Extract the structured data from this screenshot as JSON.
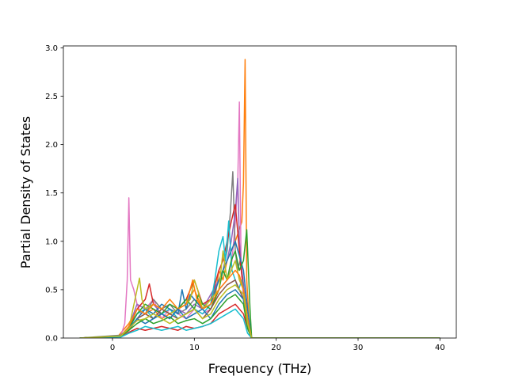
{
  "chart_data": {
    "type": "line",
    "title": "",
    "xlabel": "Frequency (THz)",
    "ylabel": "Partial Density of States",
    "xlim": [
      -6,
      42
    ],
    "ylim": [
      0.0,
      3.02
    ],
    "xticks": [
      0,
      10,
      20,
      30,
      40
    ],
    "xtick_labels": [
      "0",
      "10",
      "20",
      "30",
      "40"
    ],
    "yticks": [
      0.0,
      0.5,
      1.0,
      1.5,
      2.0,
      2.5,
      3.0
    ],
    "ytick_labels": [
      "0.0",
      "0.5",
      "1.0",
      "1.5",
      "2.0",
      "2.5",
      "3.0"
    ],
    "grid": false,
    "legend": "none",
    "x_range_of_data": [
      -4,
      40
    ],
    "series_colors": [
      "#1f77b4",
      "#ff7f0e",
      "#2ca02c",
      "#d62728",
      "#9467bd",
      "#8c564b",
      "#e377c2",
      "#7f7f7f",
      "#bcbd22",
      "#17becf"
    ],
    "series": [
      {
        "color": "#ff7f0e",
        "x": [
          -4,
          0.5,
          1,
          2,
          3,
          4,
          5,
          6,
          7,
          8,
          9,
          10,
          11,
          12,
          12.5,
          13,
          13.5,
          14,
          14.5,
          15,
          15.4,
          15.8,
          16.0,
          16.2,
          16.4,
          16.6,
          16.8,
          17,
          40
        ],
        "y": [
          0,
          0,
          0.05,
          0.15,
          0.3,
          0.25,
          0.3,
          0.2,
          0.25,
          0.3,
          0.35,
          0.5,
          0.3,
          0.35,
          0.4,
          0.7,
          0.6,
          0.8,
          0.9,
          1.0,
          1.1,
          1.2,
          1.6,
          2.88,
          0.6,
          0.3,
          0.05,
          0,
          0
        ]
      },
      {
        "color": "#e377c2",
        "x": [
          -4,
          1,
          1.5,
          1.8,
          2.0,
          2.2,
          2.6,
          3,
          3.5,
          4,
          5,
          6,
          7,
          8,
          9,
          10,
          11,
          12,
          13,
          14,
          14.6,
          15.0,
          15.3,
          15.5,
          15.7,
          16.0,
          16.5,
          17,
          40
        ],
        "y": [
          0,
          0.02,
          0.15,
          0.6,
          1.45,
          0.6,
          0.5,
          0.35,
          0.25,
          0.3,
          0.4,
          0.2,
          0.3,
          0.25,
          0.2,
          0.3,
          0.25,
          0.3,
          0.5,
          0.6,
          0.8,
          1.2,
          1.6,
          2.44,
          0.8,
          0.4,
          0.1,
          0,
          0
        ]
      },
      {
        "color": "#7f7f7f",
        "x": [
          -4,
          1,
          2,
          3,
          4,
          5,
          6,
          7,
          8,
          9,
          10,
          11,
          12,
          12.5,
          13,
          13.5,
          14,
          14.4,
          14.7,
          15.0,
          15.3,
          15.6,
          16.0,
          16.5,
          17,
          40
        ],
        "y": [
          0,
          0.03,
          0.1,
          0.3,
          0.25,
          0.4,
          0.3,
          0.35,
          0.25,
          0.3,
          0.4,
          0.3,
          0.4,
          0.5,
          0.6,
          0.7,
          0.9,
          1.3,
          1.72,
          0.9,
          0.7,
          0.8,
          0.5,
          0.2,
          0,
          0
        ]
      },
      {
        "color": "#9467bd",
        "x": [
          -4,
          1,
          2,
          3,
          4,
          5,
          6,
          7,
          8,
          9,
          10,
          11,
          12,
          13,
          13.5,
          14,
          14.5,
          15.0,
          15.3,
          15.5,
          15.8,
          16.1,
          16.5,
          17,
          40
        ],
        "y": [
          0,
          0.02,
          0.12,
          0.35,
          0.3,
          0.35,
          0.25,
          0.2,
          0.3,
          0.25,
          0.35,
          0.3,
          0.45,
          0.6,
          0.7,
          0.8,
          1.0,
          1.3,
          1.65,
          1.0,
          0.7,
          0.5,
          0.2,
          0,
          0
        ]
      },
      {
        "color": "#d62728",
        "x": [
          -4,
          1,
          2,
          3,
          3.5,
          4,
          4.5,
          5,
          6,
          7,
          8,
          9,
          10,
          11,
          12,
          13,
          13.5,
          14,
          14.5,
          15.0,
          15.3,
          15.6,
          16.0,
          16.5,
          17,
          40
        ],
        "y": [
          0,
          0.02,
          0.1,
          0.3,
          0.35,
          0.4,
          0.56,
          0.35,
          0.3,
          0.25,
          0.3,
          0.4,
          0.6,
          0.35,
          0.4,
          0.7,
          0.8,
          1.0,
          1.2,
          1.38,
          1.1,
          0.8,
          0.5,
          0.2,
          0,
          0
        ]
      },
      {
        "color": "#17becf",
        "x": [
          -4,
          1,
          2,
          3,
          4,
          5,
          6,
          7,
          8,
          9,
          10,
          11,
          12,
          12.5,
          13,
          13.5,
          13.8,
          14.2,
          14.6,
          15.0,
          15.4,
          15.8,
          16.2,
          16.6,
          17,
          40
        ],
        "y": [
          0,
          0.02,
          0.1,
          0.25,
          0.3,
          0.2,
          0.25,
          0.3,
          0.2,
          0.25,
          0.3,
          0.25,
          0.35,
          0.6,
          0.9,
          1.05,
          0.8,
          1.21,
          0.7,
          0.6,
          0.5,
          0.6,
          0.4,
          0.1,
          0,
          0
        ]
      },
      {
        "color": "#1f77b4",
        "x": [
          -4,
          1,
          2,
          3,
          4,
          5,
          6,
          7,
          8,
          8.5,
          9,
          9.5,
          10,
          11,
          12,
          13,
          13.5,
          14,
          14.5,
          15,
          15.5,
          16,
          16.5,
          17,
          40
        ],
        "y": [
          0,
          0.02,
          0.08,
          0.2,
          0.3,
          0.25,
          0.35,
          0.3,
          0.25,
          0.5,
          0.3,
          0.45,
          0.4,
          0.3,
          0.35,
          0.6,
          0.7,
          0.8,
          0.9,
          1.0,
          0.85,
          0.7,
          0.3,
          0,
          0
        ]
      },
      {
        "color": "#2ca02c",
        "x": [
          -4,
          1,
          2,
          3,
          4,
          5,
          6,
          7,
          8,
          9,
          10,
          10.5,
          11,
          12,
          13,
          13.5,
          14,
          14.5,
          15,
          15.5,
          16,
          16.4,
          16.8,
          17,
          40
        ],
        "y": [
          0,
          0.02,
          0.1,
          0.25,
          0.35,
          0.3,
          0.25,
          0.35,
          0.3,
          0.4,
          0.3,
          0.45,
          0.35,
          0.3,
          0.5,
          0.7,
          0.6,
          0.8,
          0.9,
          0.7,
          0.8,
          1.12,
          0.3,
          0,
          0
        ]
      },
      {
        "color": "#bcbd22",
        "x": [
          -4,
          1,
          2,
          2.5,
          3,
          3.3,
          3.6,
          4,
          5,
          6,
          7,
          8,
          9,
          9.5,
          10,
          10.4,
          11,
          12,
          13,
          13.5,
          14,
          14.5,
          15,
          15.5,
          16,
          16.5,
          17,
          40
        ],
        "y": [
          0,
          0.02,
          0.1,
          0.3,
          0.5,
          0.62,
          0.4,
          0.3,
          0.35,
          0.3,
          0.25,
          0.3,
          0.35,
          0.4,
          0.6,
          0.5,
          0.3,
          0.4,
          0.5,
          0.9,
          0.6,
          0.7,
          0.8,
          0.6,
          0.5,
          0.2,
          0,
          0
        ]
      },
      {
        "color": "#8c564b",
        "x": [
          -4,
          1,
          2,
          3,
          4,
          5,
          6,
          7,
          8,
          9,
          10,
          11,
          12,
          13,
          14,
          15,
          15.5,
          16,
          16.5,
          17,
          40
        ],
        "y": [
          0,
          0.02,
          0.08,
          0.2,
          0.25,
          0.2,
          0.3,
          0.25,
          0.2,
          0.25,
          0.3,
          0.2,
          0.3,
          0.45,
          0.55,
          0.6,
          0.5,
          0.4,
          0.15,
          0,
          0
        ]
      },
      {
        "color": "#ff7f0e",
        "x": [
          -4,
          1,
          2,
          3,
          4,
          5,
          6,
          7,
          8,
          9,
          9.8,
          10.3,
          11,
          12,
          13,
          14,
          15,
          15.5,
          16,
          16.5,
          17,
          40
        ],
        "y": [
          0,
          0.02,
          0.12,
          0.3,
          0.25,
          0.35,
          0.3,
          0.4,
          0.3,
          0.35,
          0.6,
          0.4,
          0.3,
          0.35,
          0.5,
          0.6,
          0.7,
          0.65,
          0.5,
          0.2,
          0,
          0
        ]
      },
      {
        "color": "#1f77b4",
        "x": [
          -4,
          1,
          2,
          3,
          4,
          5,
          6,
          7,
          8,
          9,
          10,
          11,
          12,
          13,
          14,
          15,
          16,
          16.5,
          17,
          40
        ],
        "y": [
          0,
          0.02,
          0.1,
          0.2,
          0.15,
          0.2,
          0.25,
          0.2,
          0.3,
          0.2,
          0.25,
          0.3,
          0.2,
          0.35,
          0.45,
          0.5,
          0.4,
          0.15,
          0,
          0
        ]
      },
      {
        "color": "#d62728",
        "x": [
          -4,
          1,
          2,
          3,
          4,
          5,
          6,
          7,
          8,
          9,
          10,
          11,
          12,
          13,
          14,
          15,
          16,
          16.5,
          17,
          40
        ],
        "y": [
          0,
          0.01,
          0.06,
          0.1,
          0.08,
          0.1,
          0.12,
          0.1,
          0.08,
          0.12,
          0.1,
          0.12,
          0.15,
          0.25,
          0.3,
          0.35,
          0.25,
          0.1,
          0,
          0
        ]
      },
      {
        "color": "#2ca02c",
        "x": [
          -4,
          1,
          2,
          3,
          4,
          5,
          6,
          7,
          8,
          9,
          10,
          11,
          12,
          13,
          14,
          15,
          16,
          16.5,
          17,
          40
        ],
        "y": [
          0,
          0.02,
          0.08,
          0.15,
          0.2,
          0.15,
          0.18,
          0.22,
          0.15,
          0.18,
          0.2,
          0.15,
          0.2,
          0.3,
          0.4,
          0.45,
          0.35,
          0.1,
          0,
          0
        ]
      },
      {
        "color": "#17becf",
        "x": [
          -4,
          1,
          2,
          3,
          4,
          5,
          6,
          7,
          8,
          9,
          10,
          11,
          12,
          13,
          14,
          15,
          16,
          16.5,
          17,
          40
        ],
        "y": [
          0,
          0.01,
          0.05,
          0.08,
          0.12,
          0.1,
          0.08,
          0.1,
          0.12,
          0.08,
          0.1,
          0.12,
          0.15,
          0.2,
          0.25,
          0.3,
          0.2,
          0.05,
          0,
          0
        ]
      },
      {
        "color": "#bcbd22",
        "x": [
          -4,
          1,
          2,
          3,
          4,
          5,
          6,
          7,
          8,
          9,
          10,
          11,
          12,
          13,
          14,
          15,
          16,
          16.5,
          17,
          40
        ],
        "y": [
          0,
          0.02,
          0.1,
          0.18,
          0.2,
          0.25,
          0.2,
          0.15,
          0.2,
          0.25,
          0.3,
          0.2,
          0.25,
          0.4,
          0.5,
          0.55,
          0.45,
          0.15,
          0,
          0
        ]
      }
    ]
  }
}
